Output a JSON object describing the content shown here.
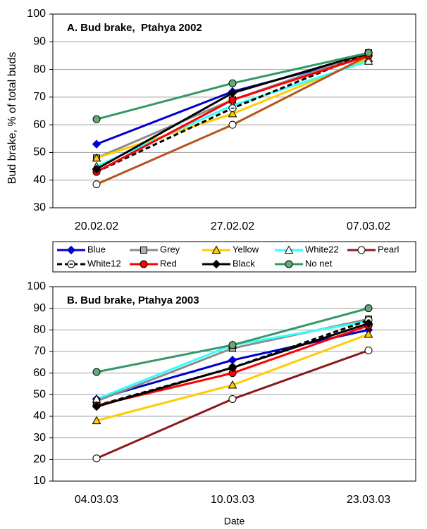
{
  "legend": [
    {
      "name": "Blue",
      "color": "#0000cc",
      "marker": "diamond",
      "fill": "#0000cc",
      "dash": false
    },
    {
      "name": "Grey",
      "color": "#8c8c8c",
      "marker": "square",
      "fill": "#b0b0b0",
      "dash": false
    },
    {
      "name": "Yellow",
      "color": "#ffcc00",
      "marker": "triangle",
      "fill": "#ffcc00",
      "dash": false
    },
    {
      "name": "White22",
      "color": "#33ffff",
      "marker": "triangle",
      "fill": "#ffffff",
      "dash": false
    },
    {
      "name": "Pearl",
      "color": "#8b1a1a",
      "marker": "circle",
      "fill": "#ffffff",
      "dash": false
    },
    {
      "name": "White12",
      "color": "#000000",
      "marker": "dotcircle",
      "fill": "#ffffff",
      "dash": true
    },
    {
      "name": "Red",
      "color": "#ff0000",
      "marker": "circle",
      "fill": "#ff0000",
      "dash": false
    },
    {
      "name": "Black",
      "color": "#000000",
      "marker": "diamond",
      "fill": "#000000",
      "dash": false
    },
    {
      "name": "No net",
      "color": "#339966",
      "marker": "circle",
      "fill": "#66aa77",
      "dash": false
    }
  ],
  "chart_data": [
    {
      "type": "line",
      "title": "A. Bud brake,  Ptahya 2002",
      "y_label": "Bud brake, % of total buds",
      "categories": [
        "20.02.02",
        "27.02.02",
        "07.03.02"
      ],
      "ylim": [
        30,
        100
      ],
      "yticks": [
        30,
        40,
        50,
        60,
        70,
        80,
        90,
        100
      ],
      "grid": true,
      "series": [
        {
          "color": "#0000cc",
          "values": [
            53,
            72,
            85
          ]
        },
        {
          "color": "#8c8c8c",
          "values": [
            48,
            69,
            86
          ]
        },
        {
          "color": "#ffcc00",
          "values": [
            48,
            64,
            84
          ]
        },
        {
          "color": "#33ffff",
          "values": [
            45,
            67,
            83
          ]
        },
        {
          "color": "#b5541c",
          "values": [
            38.5,
            60,
            85
          ]
        },
        {
          "color": "#000000",
          "values": [
            43,
            66,
            86
          ]
        },
        {
          "color": "#ff0000",
          "values": [
            43,
            69,
            85
          ]
        },
        {
          "color": "#000000",
          "values": [
            44,
            71.5,
            86
          ]
        },
        {
          "color": "#339966",
          "values": [
            62,
            75,
            86
          ]
        }
      ]
    },
    {
      "type": "line",
      "title": "B. Bud brake, Ptahya 2003",
      "x_label": "Date",
      "categories": [
        "04.03.03",
        "10.03.03",
        "23.03.03"
      ],
      "ylim": [
        10,
        100
      ],
      "yticks": [
        10,
        20,
        30,
        40,
        50,
        60,
        70,
        80,
        90,
        100
      ],
      "grid": true,
      "series": [
        {
          "color": "#0000cc",
          "values": [
            48,
            66,
            80
          ]
        },
        {
          "color": "#8c8c8c",
          "values": [
            47,
            71.5,
            85
          ]
        },
        {
          "color": "#ffcc00",
          "values": [
            38,
            54.5,
            78
          ]
        },
        {
          "color": "#33ffff",
          "values": [
            48,
            73,
            84
          ]
        },
        {
          "color": "#8b1a1a",
          "values": [
            20.5,
            48,
            70.5
          ]
        },
        {
          "color": "#000000",
          "values": [
            45,
            62.5,
            84.5
          ]
        },
        {
          "color": "#ff0000",
          "values": [
            45,
            60,
            82
          ]
        },
        {
          "color": "#000000",
          "values": [
            44.5,
            62.5,
            83
          ]
        },
        {
          "color": "#339966",
          "values": [
            60.5,
            73,
            90
          ]
        }
      ]
    }
  ]
}
